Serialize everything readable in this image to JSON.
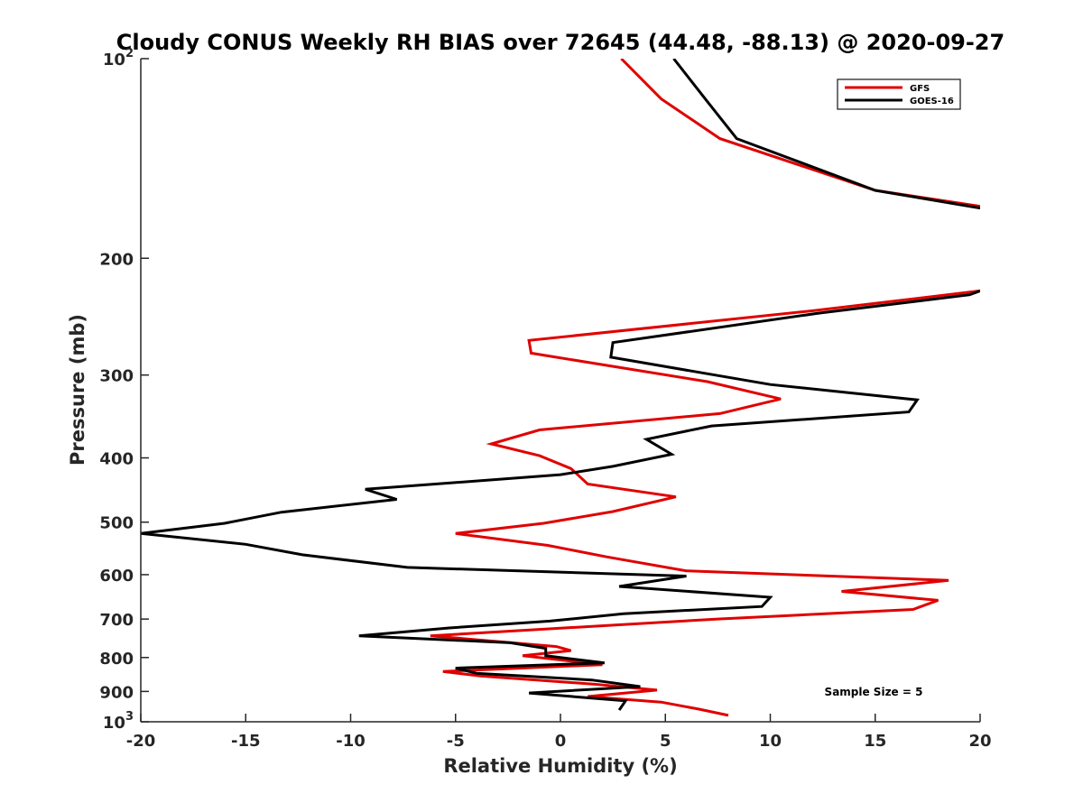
{
  "chart_data": {
    "type": "line",
    "title": "Cloudy CONUS Weekly RH BIAS over 72645 (44.48, -88.13) @ 2020-09-27",
    "xlabel": "Relative Humidity (%)",
    "ylabel": "Pressure (mb)",
    "xlim": [
      -20,
      20
    ],
    "ylim": [
      100,
      1000
    ],
    "yscale": "log",
    "y_reversed": true,
    "grid": false,
    "legend_position": "top-right",
    "x_ticks": [
      -20,
      -15,
      -10,
      -5,
      0,
      5,
      10,
      15,
      20
    ],
    "x_tick_labels": [
      "-20",
      "-15",
      "-10",
      "-5",
      "0",
      "5",
      "10",
      "15",
      "20"
    ],
    "y_ticks": [
      {
        "value": 100,
        "label": "10",
        "exp": "2"
      },
      {
        "value": 200,
        "label": "200",
        "exp": ""
      },
      {
        "value": 300,
        "label": "300",
        "exp": ""
      },
      {
        "value": 400,
        "label": "400",
        "exp": ""
      },
      {
        "value": 500,
        "label": "500",
        "exp": ""
      },
      {
        "value": 600,
        "label": "600",
        "exp": ""
      },
      {
        "value": 700,
        "label": "700",
        "exp": ""
      },
      {
        "value": 800,
        "label": "800",
        "exp": ""
      },
      {
        "value": 900,
        "label": "900",
        "exp": ""
      },
      {
        "value": 1000,
        "label": "10",
        "exp": "3"
      }
    ],
    "annotation": "Sample Size = 5",
    "series": [
      {
        "name": "GFS",
        "color": "#e00000",
        "segments": [
          {
            "x": [
              2.9,
              4.8,
              7.6,
              15.0,
              20.0
            ],
            "y": [
              100,
              115,
              132,
              158,
              167
            ]
          },
          {
            "x": [
              20.0,
              12.0,
              -1.5,
              -1.4,
              7.0,
              10.5,
              7.6,
              -1.0,
              -3.3,
              -1.0,
              0.5,
              1.3,
              5.5,
              2.5,
              -0.8,
              -5.0,
              -0.6,
              2.2,
              6.0,
              18.5,
              13.4,
              18.0,
              16.8,
              7.5,
              -6.2,
              -0.2,
              0.5,
              -1.8,
              2.0,
              -5.6,
              -3.8,
              1.7,
              4.6,
              1.3,
              4.8,
              6.6,
              8.0
            ],
            "y": [
              224,
              240,
              266,
              278,
              307,
              326,
              343,
              363,
              381,
              397,
              415,
              438,
              458,
              482,
              502,
              520,
              542,
              564,
              592,
              612,
              636,
              656,
              677,
              700,
              742,
              770,
              781,
              795,
              820,
              840,
              853,
              878,
              896,
              916,
              934,
              957,
              978
            ]
          }
        ]
      },
      {
        "name": "GOES-16",
        "color": "#000000",
        "segments": [
          {
            "x": [
              5.4,
              6.9,
              8.4,
              15.0,
              20.0
            ],
            "y": [
              100,
              115,
              132,
              158,
              168
            ]
          },
          {
            "x": [
              20.0,
              19.5,
              12.3,
              2.5,
              2.4,
              10.0,
              17.0,
              16.6,
              7.2,
              4.1,
              5.3,
              2.5,
              0,
              -9.3,
              -7.8,
              -13.3,
              -16.0,
              -20.0,
              -15.0,
              -12.3,
              -7.3,
              6.0,
              2.8,
              10.0,
              9.6,
              3.0,
              -0.5,
              -5.3,
              -9.6,
              -2.4,
              -0.7,
              -0.7,
              2.1,
              -5.0,
              -4.0,
              1.5,
              3.8,
              -1.5,
              3.1,
              2.8
            ],
            "y": [
              224,
              227,
              242,
              268,
              282,
              310,
              327,
              341,
              358,
              375,
              395,
              412,
              424,
              446,
              462,
              483,
              502,
              520,
              540,
              560,
              585,
              603,
              625,
              649,
              670,
              687,
              705,
              722,
              742,
              760,
              775,
              795,
              815,
              830,
              845,
              865,
              885,
              905,
              930,
              960
            ]
          }
        ]
      }
    ]
  }
}
